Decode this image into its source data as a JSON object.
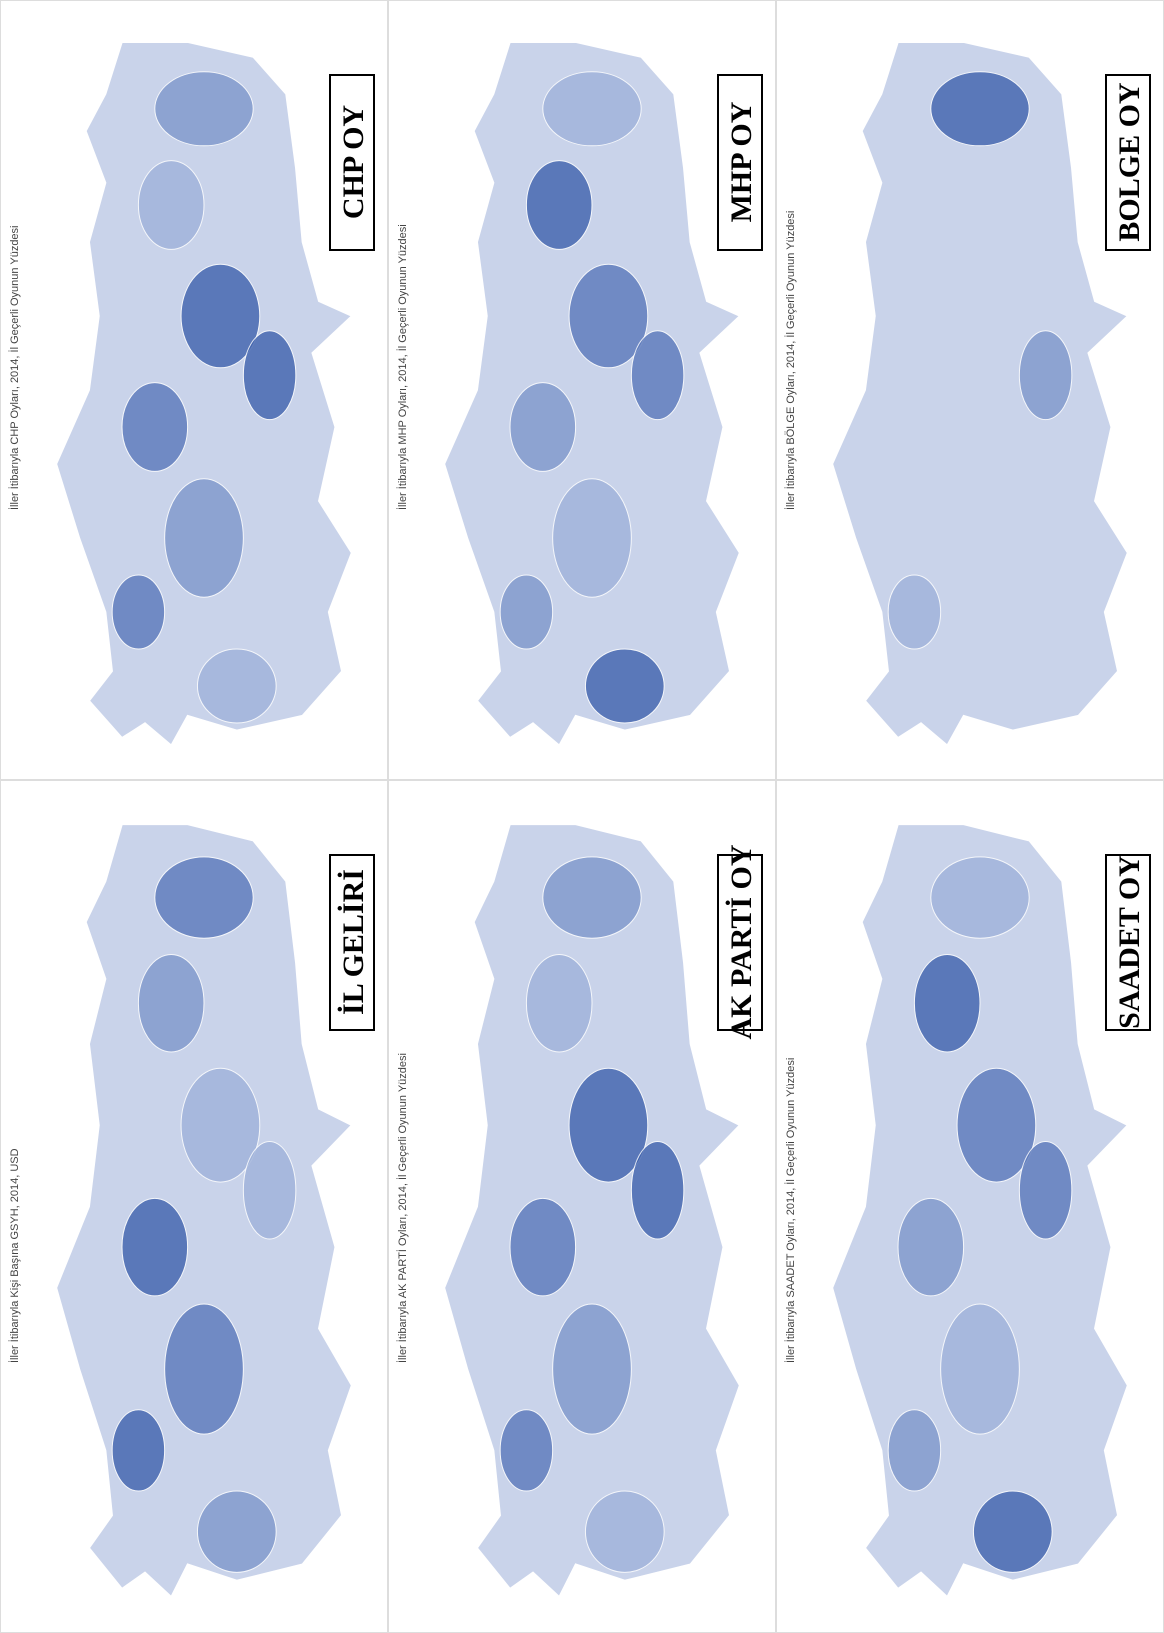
{
  "panels": [
    {
      "title": "CHP OY",
      "subtitle": "İller İtibarıyla CHP Oyları, 2014, İl Geçerli Oyunun Yüzdesi"
    },
    {
      "title": "MHP OY",
      "subtitle": "İller İtibarıyla MHP Oyları, 2014, İl Geçerli Oyunun Yüzdesi"
    },
    {
      "title": "BOLGE OY",
      "subtitle": "İller İtibarıyla BÖLGE Oyları, 2014, İl Geçerli Oyunun Yüzdesi"
    },
    {
      "title": "İL GELİRİ",
      "subtitle": "İller İtibarıyla Kişi Başına GSYH, 2014, USD"
    },
    {
      "title": "AK PARTİ OY",
      "subtitle": "İller İtibarıyla AK PARTİ Oyları, 2014, İl Geçerli Oyunun Yüzdesi"
    },
    {
      "title": "SAADET OY",
      "subtitle": "İller İtibarıyla SAADET Oyları, 2014, İl Geçerli Oyunun Yüzdesi"
    }
  ]
}
